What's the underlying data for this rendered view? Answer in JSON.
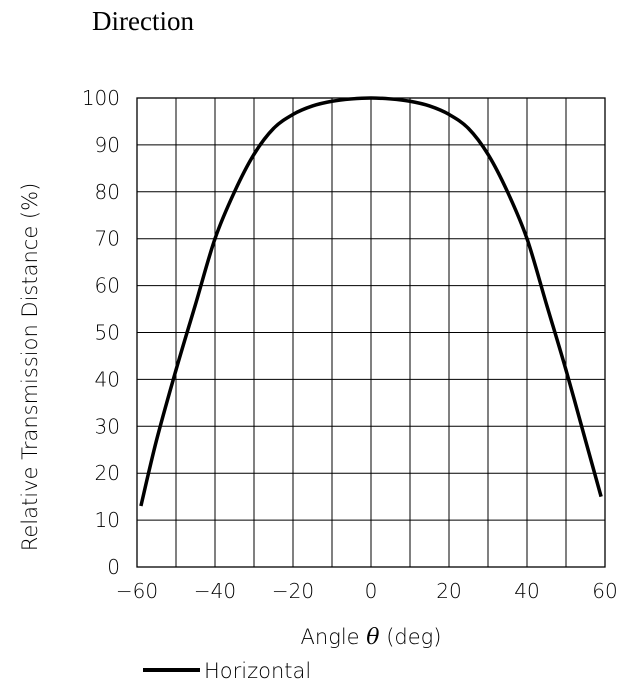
{
  "title": "Direction",
  "chart_data": {
    "type": "line",
    "xlabel_prefix": "Angle ",
    "xlabel_symbol": "θ",
    "xlabel_suffix": " (deg)",
    "ylabel": "Relative Transmission Distance (%)",
    "xlim": [
      -60,
      60
    ],
    "ylim": [
      0,
      100
    ],
    "x_ticks": [
      -60,
      -40,
      -20,
      0,
      20,
      40,
      60
    ],
    "y_ticks": [
      0,
      10,
      20,
      30,
      40,
      50,
      60,
      70,
      80,
      90,
      100
    ],
    "x_grid_step": 10,
    "y_grid_step": 10,
    "grid": true,
    "legend_position": "bottom-left",
    "series": [
      {
        "name": "Horizontal",
        "color": "#000000",
        "x": [
          -59,
          -55,
          -50,
          -45,
          -40,
          -35,
          -30,
          -25,
          -20,
          -15,
          -10,
          -5,
          0,
          5,
          10,
          15,
          20,
          25,
          30,
          35,
          40,
          45,
          50,
          55,
          59
        ],
        "y": [
          13,
          27,
          42,
          56,
          70,
          80,
          88,
          93.5,
          96.5,
          98.3,
          99.3,
          99.8,
          100,
          99.8,
          99.3,
          98.3,
          96.5,
          93.5,
          88,
          80,
          70,
          56,
          42,
          27,
          15
        ]
      }
    ]
  }
}
